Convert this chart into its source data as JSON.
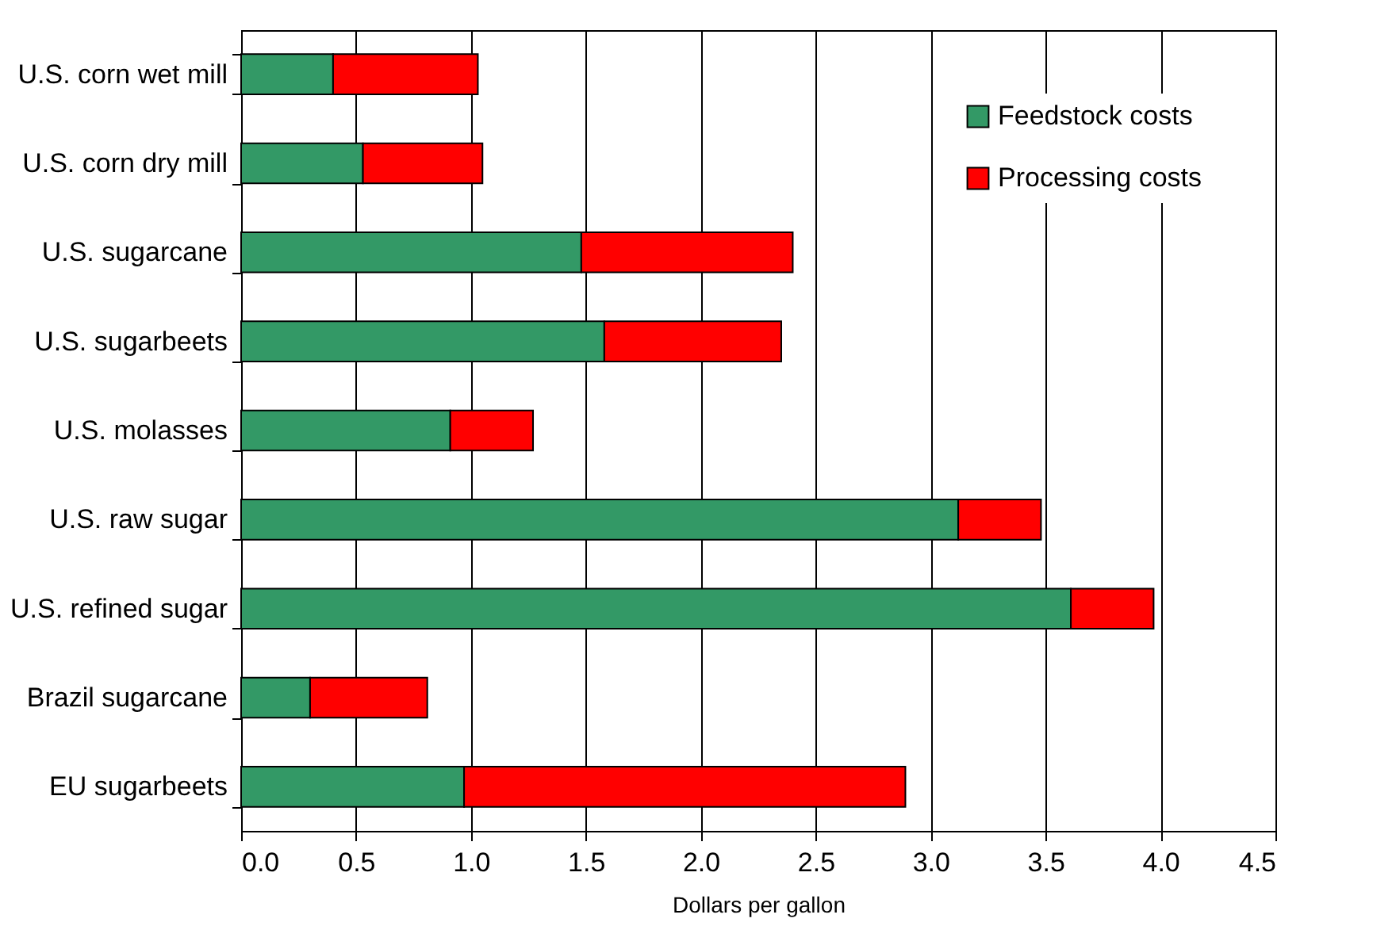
{
  "chart_data": {
    "type": "bar",
    "orientation": "horizontal",
    "stacked": true,
    "xlabel": "Dollars per gallon",
    "categories": [
      "U.S. corn wet mill",
      "U.S. corn dry mill",
      "U.S. sugarcane",
      "U.S. sugarbeets",
      "U.S. molasses",
      "U.S. raw sugar",
      "U.S. refined sugar",
      "Brazil sugarcane",
      "EU sugarbeets"
    ],
    "series": [
      {
        "name": "Feedstock costs",
        "color": "#339966",
        "values": [
          0.4,
          0.53,
          1.48,
          1.58,
          0.91,
          3.12,
          3.61,
          0.3,
          0.97
        ]
      },
      {
        "name": "Processing costs",
        "color": "#ff0000",
        "values": [
          0.63,
          0.52,
          0.92,
          0.77,
          0.36,
          0.36,
          0.36,
          0.51,
          1.92
        ]
      }
    ],
    "xlim": [
      0,
      4.5
    ],
    "xticks": [
      {
        "value": 0,
        "label": "0.0"
      },
      {
        "value": 0.5,
        "label": "0.5"
      },
      {
        "value": 1,
        "label": "1.0"
      },
      {
        "value": 1.5,
        "label": "1.5"
      },
      {
        "value": 2,
        "label": "2.0"
      },
      {
        "value": 2.5,
        "label": "2.5"
      },
      {
        "value": 3,
        "label": "3.0"
      },
      {
        "value": 3.5,
        "label": "3.5"
      },
      {
        "value": 4,
        "label": "4.0"
      },
      {
        "value": 4.5,
        "label": "4.5"
      }
    ],
    "grid": "x",
    "legend": "top right"
  }
}
